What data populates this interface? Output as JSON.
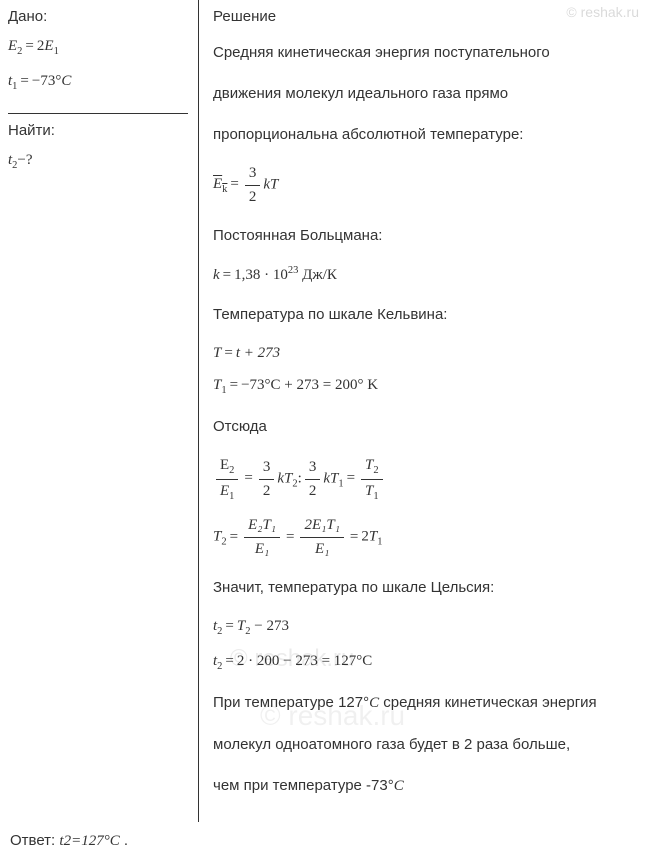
{
  "watermark": "© reshak.ru",
  "left": {
    "given_label": "Дано:",
    "eq1_lhs_var": "E",
    "eq1_lhs_sub": "2",
    "eq1_rhs_coef": "2",
    "eq1_rhs_var": "E",
    "eq1_rhs_sub": "1",
    "eq2_lhs_var": "t",
    "eq2_lhs_sub": "1",
    "eq2_rhs": "−73°",
    "eq2_unit": "C",
    "find_label": "Найти:",
    "find_var": "t",
    "find_sub": "2",
    "find_suffix": "−?"
  },
  "right": {
    "title": "Решение",
    "l1": "Средняя кинетическая энергия поступательного",
    "l2": "движения молекул идеального газа прямо",
    "l3": "пропорциональна абсолютной температуре:",
    "ek_bar": "E",
    "ek_sub": "k",
    "ek_frac_n": "3",
    "ek_frac_d": "2",
    "ek_tail": "kT",
    "l4": "Постоянная Больцмана:",
    "k_eq_lhs": "k",
    "k_eq_rhs": "1,38 · 10",
    "k_eq_exp": "23",
    "k_eq_unit": " Дж/К",
    "l5": "Температура по шкале Кельвина:",
    "T_def_lhs": "T",
    "T_def_rhs": "t + 273",
    "T1_lhs_var": "T",
    "T1_lhs_sub": "1",
    "T1_rhs": "−73°C + 273 = 200° K",
    "l6": "Отсюда",
    "ratio_n_var": "E",
    "ratio_n_sub": "2",
    "ratio_d_var": "E",
    "ratio_d_sub": "1",
    "half_n": "3",
    "half_d": "2",
    "kT2_var": "kT",
    "kT2_sub": "2",
    "kT1_var": "kT",
    "kT1_sub": "1",
    "Tratio_n_var": "T",
    "Tratio_n_sub": "2",
    "Tratio_d_var": "T",
    "Tratio_d_sub": "1",
    "T2_lhs_var": "T",
    "T2_lhs_sub": "2",
    "T2_f1_n": "E₂T₁",
    "T2_f1_d": "E₁",
    "T2_f2_n": "2E₁T₁",
    "T2_f2_d": "E₁",
    "T2_tail_coef": "2",
    "T2_tail_var": "T",
    "T2_tail_sub": "1",
    "l7": "Значит, температура по шкале Цельсия:",
    "t2_eq_lhs_var": "t",
    "t2_eq_lhs_sub": "2",
    "t2_eq_rhs_a": "T",
    "t2_eq_rhs_a_sub": "2",
    "t2_eq_rhs_b": "− 273",
    "t2_num_lhs_var": "t",
    "t2_num_lhs_sub": "2",
    "t2_num_rhs": "2 · 200 − 273 = 127°C",
    "l8_a": "При температуре 127°",
    "l8_c": "C",
    "l8_b": " средняя кинетическая энергия",
    "l9": "молекул одноатомного газа будет в 2 раза больше,",
    "l10_a": "чем при температуре -73°",
    "l10_c": "C"
  },
  "answer": {
    "label": "Ответ:  ",
    "var": "t",
    "sub": "2",
    "val": "127°",
    "unit": "C",
    "dot": " ."
  }
}
